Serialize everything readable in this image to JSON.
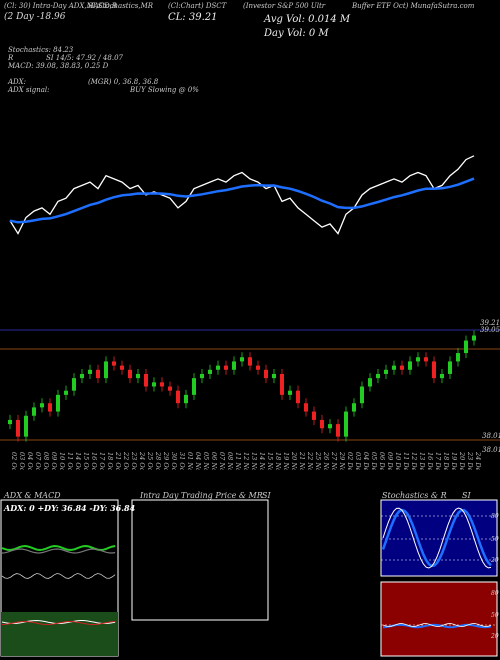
{
  "header": {
    "line1a": "(Cl: 30) Intra-Day ADX,MACD,B",
    "line1b": "SI,Stochastics,MR",
    "line1c": "(Cl:Chart) DSCT",
    "line1d": "(Investor S&P 500 Ultr",
    "line1e": "Buffer ETF Oct) MunafaSutra.com",
    "line2a": "(2  Day  -18.96",
    "line2b": "CL: 39.21",
    "line2c": "Avg Vol: 0.014  M",
    "line3": "Day Vol: 0  M",
    "stoch": "Stochastics: 84.23",
    "si": "SI 14/5: 47.92 / 48.07",
    "macd": "MACD: 39.08, 38.83, 0.25 D",
    "adx": "ADX: ",
    "adx_detail": "(MGR) 0, 36.8, 36.8",
    "adx_signal": "ADX  signal:",
    "adx_buy": "BUY Slowing @ 0%",
    "r_label": "R"
  },
  "price_axis": {
    "top_label": "39.21",
    "top2_label": "39.05",
    "bottom_label": "38.01",
    "bottom2_label": "38.01"
  },
  "chart_data": {
    "type": "candlestick",
    "dates": [
      "02 Oct",
      "03 Oct",
      "04 Oct",
      "07 Oct",
      "08 Oct",
      "09 Oct",
      "10 Oct",
      "11 Oct",
      "14 Oct",
      "15 Oct",
      "16 Oct",
      "17 Oct",
      "18 Oct",
      "21 Oct",
      "22 Oct",
      "23 Oct",
      "24 Oct",
      "25 Oct",
      "28 Oct",
      "29 Oct",
      "30 Oct",
      "31 Oct",
      "01 Nov",
      "04 Nov",
      "05 Nov",
      "06 Nov",
      "07 Nov",
      "08 Nov",
      "11 Nov",
      "12 Nov",
      "13 Nov",
      "14 Nov",
      "15 Nov",
      "18 Nov",
      "19 Nov",
      "20 Nov",
      "21 Nov",
      "22 Nov",
      "25 Nov",
      "26 Nov",
      "27 Nov",
      "29 Nov",
      "02 Dec",
      "03 Dec",
      "04 Dec",
      "05 Dec",
      "06 Dec",
      "09 Dec",
      "10 Dec",
      "11 Dec",
      "12 Dec",
      "13 Dec",
      "16 Dec",
      "17 Dec",
      "18 Dec",
      "19 Dec",
      "20 Dec",
      "23 Dec",
      "24 Dec"
    ],
    "closes": [
      38.2,
      38.0,
      38.25,
      38.35,
      38.4,
      38.3,
      38.5,
      38.55,
      38.7,
      38.75,
      38.8,
      38.7,
      38.9,
      38.85,
      38.8,
      38.7,
      38.75,
      38.6,
      38.65,
      38.6,
      38.55,
      38.4,
      38.5,
      38.7,
      38.75,
      38.8,
      38.85,
      38.8,
      38.9,
      38.95,
      38.85,
      38.8,
      38.7,
      38.75,
      38.5,
      38.55,
      38.4,
      38.3,
      38.2,
      38.1,
      38.15,
      38.0,
      38.3,
      38.4,
      38.6,
      38.7,
      38.75,
      38.8,
      38.85,
      38.8,
      38.9,
      38.95,
      38.9,
      38.7,
      38.75,
      38.9,
      39.0,
      39.15,
      39.21
    ],
    "colors": {
      "up": "#22cc22",
      "down": "#ee2222",
      "ma": "#1e6fff",
      "line": "#ffffff"
    }
  },
  "panels": {
    "adx_title": "ADX  & MACD",
    "adx_vals": "ADX: 0   +DY: 36.84   -DY: 36.84",
    "intra_title": "Intra  Day Trading Price  & MR",
    "intra_si": "SI",
    "stoch_title": "Stochastics & R",
    "stoch_si": "SI",
    "stoch_ticks": [
      "80",
      "50",
      "20"
    ],
    "si_ticks": [
      "80",
      "50",
      "20"
    ]
  }
}
